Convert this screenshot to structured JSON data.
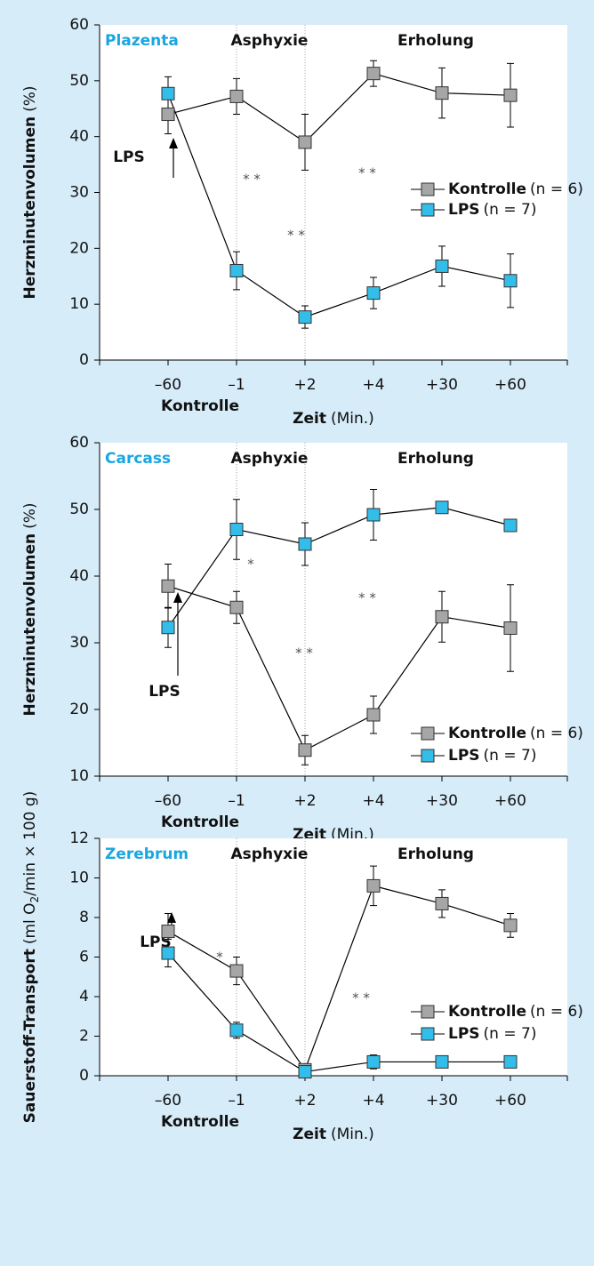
{
  "chart_data": [
    {
      "type": "line",
      "panel_label": "Plazenta",
      "phase_labels": [
        "Asphyxie",
        "Erholung"
      ],
      "annotations": [
        "LPS",
        "* *",
        "* *",
        "* *"
      ],
      "x_sublabel": "Kontrolle",
      "x_label": {
        "bold": "Zeit",
        "rest": "(Min.)"
      },
      "y_label": {
        "bold": "Herzminutenvolumen",
        "rest": "(%)"
      },
      "categories": [
        "–60",
        "–1",
        "+2",
        "+4",
        "+30",
        "+60"
      ],
      "series": [
        {
          "name": "Kontrolle",
          "note": "(n = 6)",
          "color": "#a6a6a6",
          "values": [
            44,
            47.2,
            39,
            51.3,
            47.8,
            47.4
          ],
          "errors": [
            3.5,
            3.2,
            5,
            2.3,
            4.5,
            5.7
          ]
        },
        {
          "name": "LPS",
          "note": "(n = 7)",
          "color": "#33bde9",
          "values": [
            47.7,
            16,
            7.7,
            12,
            16.8,
            14.2
          ],
          "errors": [
            3,
            3.4,
            2,
            2.8,
            3.6,
            4.8
          ]
        }
      ],
      "ylim": [
        0,
        60
      ],
      "yticks": [
        0,
        10,
        20,
        30,
        40,
        50,
        60
      ]
    },
    {
      "type": "line",
      "panel_label": "Carcass",
      "phase_labels": [
        "Asphyxie",
        "Erholung"
      ],
      "annotations": [
        "LPS",
        "*",
        "* *",
        "* *"
      ],
      "x_sublabel": "Kontrolle",
      "x_label": {
        "bold": "Zeit",
        "rest": "(Min.)"
      },
      "y_label": {
        "bold": "Herzminutenvolumen",
        "rest": "(%)"
      },
      "categories": [
        "–60",
        "–1",
        "+2",
        "+4",
        "+30",
        "+60"
      ],
      "series": [
        {
          "name": "Kontrolle",
          "note": "(n = 6)",
          "color": "#a6a6a6",
          "values": [
            38.5,
            35.3,
            13.9,
            19.2,
            33.9,
            32.2
          ],
          "errors": [
            3.3,
            2.4,
            2.2,
            2.8,
            3.8,
            6.5
          ]
        },
        {
          "name": "LPS",
          "note": "(n = 7)",
          "color": "#33bde9",
          "values": [
            32.3,
            47,
            44.8,
            49.2,
            50.3,
            47.6
          ],
          "errors": [
            3,
            4.5,
            3.2,
            3.8,
            null,
            null
          ]
        }
      ],
      "ylim": [
        10,
        60
      ],
      "yticks": [
        10,
        20,
        30,
        40,
        50,
        60
      ]
    },
    {
      "type": "line",
      "panel_label": "Zerebrum",
      "phase_labels": [
        "Asphyxie",
        "Erholung"
      ],
      "annotations": [
        "LPS",
        "*",
        "* *"
      ],
      "x_sublabel": "Kontrolle",
      "x_label": {
        "bold": "Zeit",
        "rest": "(Min.)"
      },
      "y_label": {
        "bold": "Sauerstoff-Transport",
        "rest": "(ml O",
        "sub": "2",
        "tail": "/min × 100 g)"
      },
      "categories": [
        "–60",
        "–1",
        "+2",
        "+4",
        "+30",
        "+60"
      ],
      "series": [
        {
          "name": "Kontrolle",
          "note": "(n = 6)",
          "color": "#a6a6a6",
          "values": [
            7.3,
            5.3,
            0.3,
            9.6,
            8.7,
            7.6
          ],
          "errors": [
            0.9,
            0.7,
            null,
            1.0,
            0.7,
            0.6
          ]
        },
        {
          "name": "LPS",
          "note": "(n = 7)",
          "color": "#33bde9",
          "values": [
            6.2,
            2.3,
            0.2,
            0.7,
            0.7,
            0.7
          ],
          "errors": [
            0.7,
            0.4,
            0.2,
            0.35,
            null,
            null
          ]
        }
      ],
      "ylim": [
        0,
        12
      ],
      "yticks": [
        0,
        2,
        4,
        6,
        8,
        10,
        12
      ]
    }
  ]
}
